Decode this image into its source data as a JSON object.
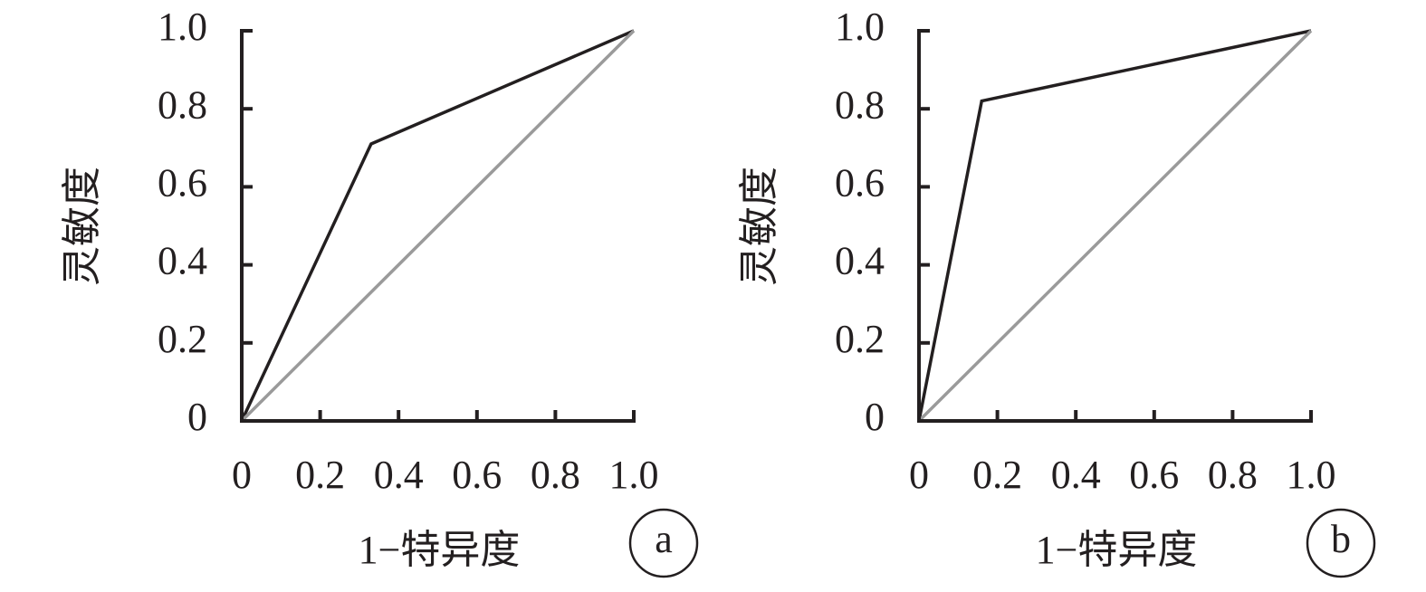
{
  "chart_data": [
    {
      "type": "line",
      "xlabel": "1−特异度",
      "ylabel": "灵敏度",
      "panel_label": "a",
      "xlim": [
        0,
        1
      ],
      "ylim": [
        0,
        1
      ],
      "xticks": [
        0,
        0.2,
        0.4,
        0.6,
        0.8,
        {
          "value": 1,
          "label": "1.0"
        }
      ],
      "yticks": [
        0,
        0.2,
        0.4,
        0.6,
        0.8,
        {
          "value": 1,
          "label": "1.0"
        }
      ],
      "series": [
        {
          "color": "#231f20",
          "x": [
            0,
            0.33,
            1
          ],
          "values": [
            0,
            0.71,
            1
          ]
        },
        {
          "color": "#9a9a9a",
          "x": [
            0,
            1
          ],
          "values": [
            0,
            1
          ]
        }
      ]
    },
    {
      "type": "line",
      "xlabel": "1−特异度",
      "ylabel": "灵敏度",
      "panel_label": "b",
      "xlim": [
        0,
        1
      ],
      "ylim": [
        0,
        1
      ],
      "xticks": [
        0,
        0.2,
        0.4,
        0.6,
        0.8,
        {
          "value": 1,
          "label": "1.0"
        }
      ],
      "yticks": [
        0,
        0.2,
        0.4,
        0.6,
        0.8,
        {
          "value": 1,
          "label": "1.0"
        }
      ],
      "series": [
        {
          "color": "#231f20",
          "x": [
            0,
            0.16,
            1
          ],
          "values": [
            0,
            0.82,
            1
          ]
        },
        {
          "color": "#9a9a9a",
          "x": [
            0,
            1
          ],
          "values": [
            0,
            1
          ]
        }
      ]
    }
  ]
}
